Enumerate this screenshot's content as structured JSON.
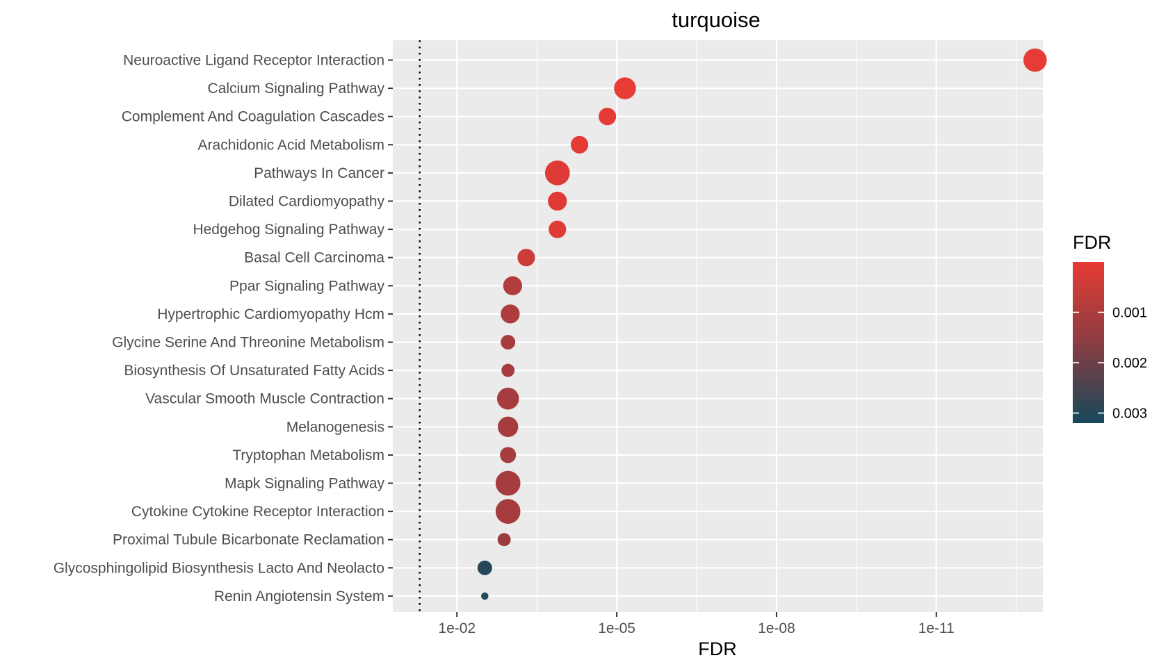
{
  "chart_data": {
    "type": "scatter",
    "title": "turquoise",
    "xlabel": "FDR",
    "ylabel": "",
    "x_scale": "reverse-log10",
    "x_ticks": [
      {
        "value": 0.01,
        "label": "1e-02"
      },
      {
        "value": 1e-05,
        "label": "1e-05"
      },
      {
        "value": 1e-08,
        "label": "1e-08"
      },
      {
        "value": 1e-11,
        "label": "1e-11"
      }
    ],
    "xlim": [
      0.16,
      1e-13
    ],
    "threshold_line": 0.05,
    "grid": true,
    "categories": [
      "Neuroactive Ligand Receptor Interaction",
      "Calcium Signaling Pathway",
      "Complement And Coagulation Cascades",
      "Arachidonic Acid Metabolism",
      "Pathways In Cancer",
      "Dilated Cardiomyopathy",
      "Hedgehog Signaling Pathway",
      "Basal Cell Carcinoma",
      "Ppar Signaling Pathway",
      "Hypertrophic Cardiomyopathy Hcm",
      "Glycine Serine And Threonine Metabolism",
      "Biosynthesis Of Unsaturated Fatty Acids",
      "Vascular Smooth Muscle Contraction",
      "Melanogenesis",
      "Tryptophan Metabolism",
      "Mapk Signaling Pathway",
      "Cytokine Cytokine Receptor Interaction",
      "Proximal Tubule Bicarbonate Reclamation",
      "Glycosphingolipid Biosynthesis Lacto And Neolacto",
      "Renin Angiotensin System"
    ],
    "x": [
      1.4e-13,
      7e-06,
      1.5e-05,
      5e-05,
      0.00013,
      0.00013,
      0.00013,
      0.0005,
      0.0009,
      0.001,
      0.0011,
      0.0011,
      0.0011,
      0.0011,
      0.0011,
      0.0011,
      0.0011,
      0.0013,
      0.003,
      0.003
    ],
    "size": [
      16,
      15,
      12,
      12,
      17,
      13,
      12,
      12,
      13,
      13,
      10,
      9,
      15,
      14,
      11,
      17,
      17,
      9,
      10,
      5
    ],
    "legend": {
      "title": "FDR",
      "position": "right",
      "type": "colorbar",
      "range": [
        0.0032,
        0.0
      ],
      "ticks": [
        {
          "value": 0.001,
          "label": "0.001"
        },
        {
          "value": 0.002,
          "label": "0.002"
        },
        {
          "value": 0.003,
          "label": "0.003"
        }
      ],
      "color_low": "#e73b35",
      "color_mid": "#8a3d42",
      "color_high": "#16485b"
    },
    "colors": {
      "panel_bg": "#ebebeb",
      "grid": "#ffffff"
    }
  }
}
